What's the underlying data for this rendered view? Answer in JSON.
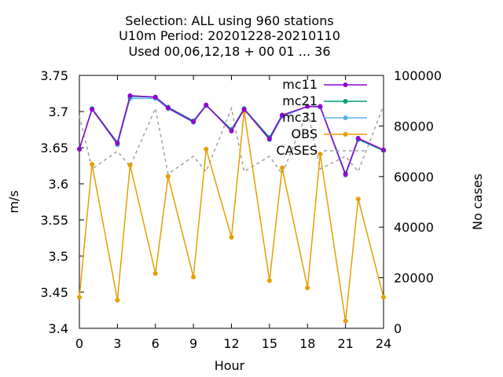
{
  "chart_data": {
    "type": "line",
    "title_lines": [
      "Selection: ALL using   960 stations",
      "U10m   Period: 20201228-20210110",
      "Used  00,06,12,18 + 00 01 ... 36"
    ],
    "xlabel": "Hour",
    "ylabel": "m/s",
    "y2label": "No cases",
    "xlim": [
      0,
      24
    ],
    "ylim": [
      3.4,
      3.75
    ],
    "y2lim": [
      0,
      100000
    ],
    "xticks": [
      "0",
      "3",
      "6",
      "9",
      "12",
      "15",
      "18",
      "21",
      "24"
    ],
    "yticks": [
      "3.4",
      "3.45",
      "3.5",
      "3.55",
      "3.6",
      "3.65",
      "3.7",
      "3.75"
    ],
    "y2ticks": [
      "0",
      "20000",
      "40000",
      "60000",
      "80000",
      "100000"
    ],
    "x": [
      0,
      1,
      3,
      4,
      6,
      7,
      9,
      10,
      12,
      13,
      15,
      16,
      18,
      19,
      21,
      22,
      24
    ],
    "legend_position": "top-right",
    "series": [
      {
        "name": "mc11",
        "color": "#9400d3",
        "marker": "circle",
        "axis": "y1",
        "values": [
          3.648,
          3.703,
          3.656,
          3.722,
          3.72,
          3.705,
          3.686,
          3.709,
          3.673,
          3.703,
          3.662,
          3.695,
          3.707,
          3.707,
          3.613,
          3.663,
          3.647
        ]
      },
      {
        "name": "mc21",
        "color": "#009e73",
        "marker": "circle",
        "axis": "y1",
        "values": [
          3.648,
          3.704,
          3.657,
          3.721,
          3.72,
          3.706,
          3.687,
          3.709,
          3.675,
          3.704,
          3.664,
          3.695,
          3.707,
          3.707,
          3.614,
          3.662,
          3.646
        ]
      },
      {
        "name": "mc31",
        "color": "#56b4e9",
        "marker": "circle",
        "axis": "y1",
        "values": [
          3.648,
          3.704,
          3.654,
          3.718,
          3.718,
          3.704,
          3.685,
          3.708,
          3.675,
          3.704,
          3.661,
          3.693,
          3.707,
          3.706,
          3.612,
          3.661,
          3.646
        ]
      },
      {
        "name": "OBS",
        "color": "#e69f00",
        "marker": "circle",
        "axis": "y1",
        "values": [
          3.443,
          3.627,
          3.439,
          3.626,
          3.476,
          3.61,
          3.471,
          3.648,
          3.526,
          3.7,
          3.466,
          3.622,
          3.456,
          3.641,
          3.41,
          3.579,
          3.443
        ]
      },
      {
        "name": "CASES",
        "color": "#a0a0a0",
        "marker": "none",
        "axis": "y2",
        "dashed": true,
        "values": [
          84000,
          63000,
          70000,
          64000,
          87000,
          61000,
          68000,
          62000,
          87000,
          62000,
          68000,
          61000,
          86000,
          63000,
          68000,
          62000,
          88000
        ]
      }
    ]
  }
}
